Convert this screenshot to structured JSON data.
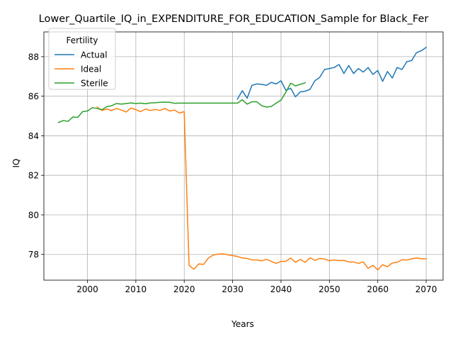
{
  "chart_data": {
    "type": "line",
    "title": "Lower_Quartile_IQ_in_EXPENDITURE_FOR_EDUCATION_Sample for Black_Fer",
    "xlabel": "Years",
    "ylabel": "IQ",
    "xlim": [
      1991,
      2073.5
    ],
    "ylim": [
      76.7,
      89.25
    ],
    "xticks": [
      2000,
      2010,
      2020,
      2030,
      2040,
      2050,
      2060,
      2070
    ],
    "yticks": [
      78,
      80,
      82,
      84,
      86,
      88
    ],
    "grid": true,
    "legend": {
      "title": "Fertility",
      "placement": "top-left"
    },
    "series": [
      {
        "name": "Actual",
        "color": "#1f77b4",
        "x": [
          2031,
          2032,
          2033,
          2034,
          2035,
          2036,
          2037,
          2038,
          2039,
          2040,
          2041,
          2042,
          2043,
          2044,
          2045,
          2046,
          2047,
          2048,
          2049,
          2050,
          2051,
          2052,
          2053,
          2054,
          2055,
          2056,
          2057,
          2058,
          2059,
          2060,
          2061,
          2062,
          2063,
          2064,
          2065,
          2066,
          2067,
          2068,
          2069,
          2070
        ],
        "values": [
          85.85,
          86.28,
          85.9,
          86.55,
          86.62,
          86.6,
          86.55,
          86.7,
          86.62,
          86.78,
          86.3,
          86.4,
          85.97,
          86.22,
          86.25,
          86.35,
          86.78,
          86.95,
          87.35,
          87.4,
          87.45,
          87.6,
          87.15,
          87.55,
          87.15,
          87.4,
          87.22,
          87.45,
          87.1,
          87.3,
          86.75,
          87.25,
          86.92,
          87.45,
          87.35,
          87.75,
          87.8,
          88.2,
          88.3,
          88.47
        ]
      },
      {
        "name": "Ideal",
        "color": "#ff7f0e",
        "x": [
          2002,
          2003,
          2004,
          2005,
          2006,
          2007,
          2008,
          2009,
          2010,
          2011,
          2012,
          2013,
          2014,
          2015,
          2016,
          2017,
          2018,
          2019,
          2020,
          2021,
          2022,
          2023,
          2024,
          2025,
          2026,
          2027,
          2028,
          2029,
          2030,
          2031,
          2032,
          2033,
          2034,
          2035,
          2036,
          2037,
          2038,
          2039,
          2040,
          2041,
          2042,
          2043,
          2044,
          2045,
          2046,
          2047,
          2048,
          2049,
          2050,
          2051,
          2052,
          2053,
          2054,
          2055,
          2056,
          2057,
          2058,
          2059,
          2060,
          2061,
          2062,
          2063,
          2064,
          2065,
          2066,
          2067,
          2068,
          2069,
          2070
        ],
        "values": [
          85.45,
          85.28,
          85.35,
          85.28,
          85.38,
          85.3,
          85.2,
          85.4,
          85.32,
          85.22,
          85.35,
          85.28,
          85.33,
          85.28,
          85.38,
          85.25,
          85.3,
          85.15,
          85.22,
          77.45,
          77.25,
          77.52,
          77.5,
          77.82,
          77.97,
          78.02,
          78.03,
          77.98,
          77.94,
          77.9,
          77.82,
          77.8,
          77.72,
          77.72,
          77.68,
          77.75,
          77.65,
          77.55,
          77.65,
          77.65,
          77.82,
          77.6,
          77.75,
          77.6,
          77.83,
          77.7,
          77.8,
          77.77,
          77.68,
          77.72,
          77.69,
          77.7,
          77.62,
          77.62,
          77.55,
          77.62,
          77.3,
          77.45,
          77.22,
          77.48,
          77.38,
          77.57,
          77.6,
          77.73,
          77.72,
          77.78,
          77.82,
          77.78,
          77.78
        ]
      },
      {
        "name": "Sterile",
        "color": "#2ca02c",
        "x": [
          1994,
          1995,
          1996,
          1997,
          1998,
          1999,
          2000,
          2001,
          2002,
          2003,
          2004,
          2005,
          2006,
          2007,
          2008,
          2009,
          2010,
          2011,
          2012,
          2013,
          2014,
          2015,
          2016,
          2017,
          2018,
          2019,
          2020,
          2021,
          2022,
          2023,
          2024,
          2025,
          2026,
          2027,
          2028,
          2029,
          2030,
          2031,
          2032,
          2033,
          2034,
          2035,
          2036,
          2037,
          2038,
          2039,
          2040,
          2041,
          2042,
          2043,
          2044,
          2045
        ],
        "values": [
          84.67,
          84.77,
          84.73,
          84.95,
          84.93,
          85.22,
          85.25,
          85.42,
          85.38,
          85.32,
          85.47,
          85.52,
          85.63,
          85.6,
          85.63,
          85.66,
          85.63,
          85.65,
          85.62,
          85.66,
          85.67,
          85.69,
          85.7,
          85.69,
          85.64,
          85.65,
          85.65,
          85.65,
          85.65,
          85.65,
          85.65,
          85.65,
          85.65,
          85.65,
          85.65,
          85.65,
          85.65,
          85.65,
          85.82,
          85.6,
          85.72,
          85.72,
          85.52,
          85.45,
          85.48,
          85.65,
          85.8,
          86.2,
          86.66,
          86.52,
          86.6,
          86.68
        ]
      }
    ]
  }
}
